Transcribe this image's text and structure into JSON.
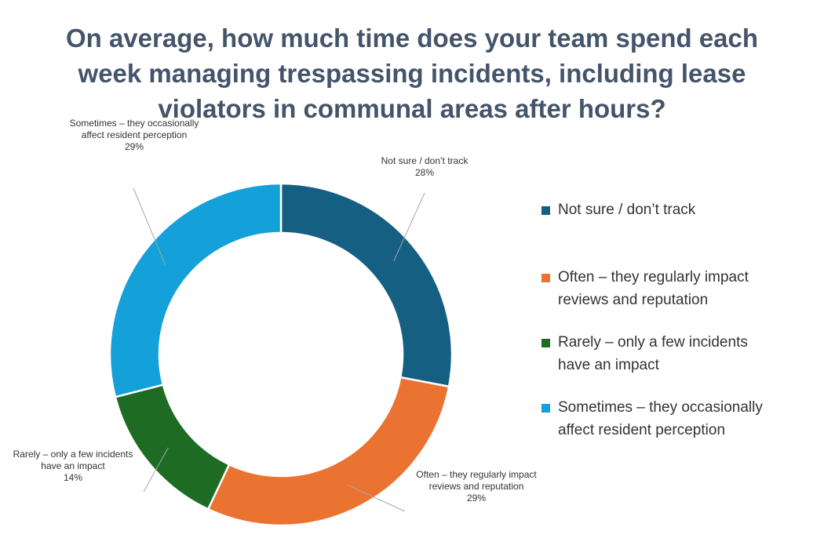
{
  "chart_data": {
    "type": "pie",
    "title_lines": [
      "On average, how much time does your team spend each",
      "week managing trespassing incidents, including lease",
      "violators in communal areas after hours?"
    ],
    "slices": [
      {
        "label_lines": [
          "Not sure / don’t track"
        ],
        "legend_lines": [
          "Not sure / don’t track"
        ],
        "value": 28,
        "value_label": "28%",
        "color": "#155f83"
      },
      {
        "label_lines": [
          "Often – they regularly impact",
          "reviews and reputation"
        ],
        "legend_lines": [
          "Often – they regularly impact",
          "reviews and reputation"
        ],
        "value": 29,
        "value_label": "29%",
        "color": "#eb7331"
      },
      {
        "label_lines": [
          "Rarely – only a few incidents",
          "have an impact"
        ],
        "legend_lines": [
          "Rarely – only a few incidents",
          "have an impact"
        ],
        "value": 14,
        "value_label": "14%",
        "color": "#1e6b24"
      },
      {
        "label_lines": [
          "Sometimes – they occasionally",
          "affect resident perception"
        ],
        "legend_lines": [
          "Sometimes – they occasionally",
          "affect resident perception"
        ],
        "value": 29,
        "value_label": "29%",
        "color": "#14a0d9"
      }
    ],
    "legend_position": "right",
    "donut": true
  }
}
